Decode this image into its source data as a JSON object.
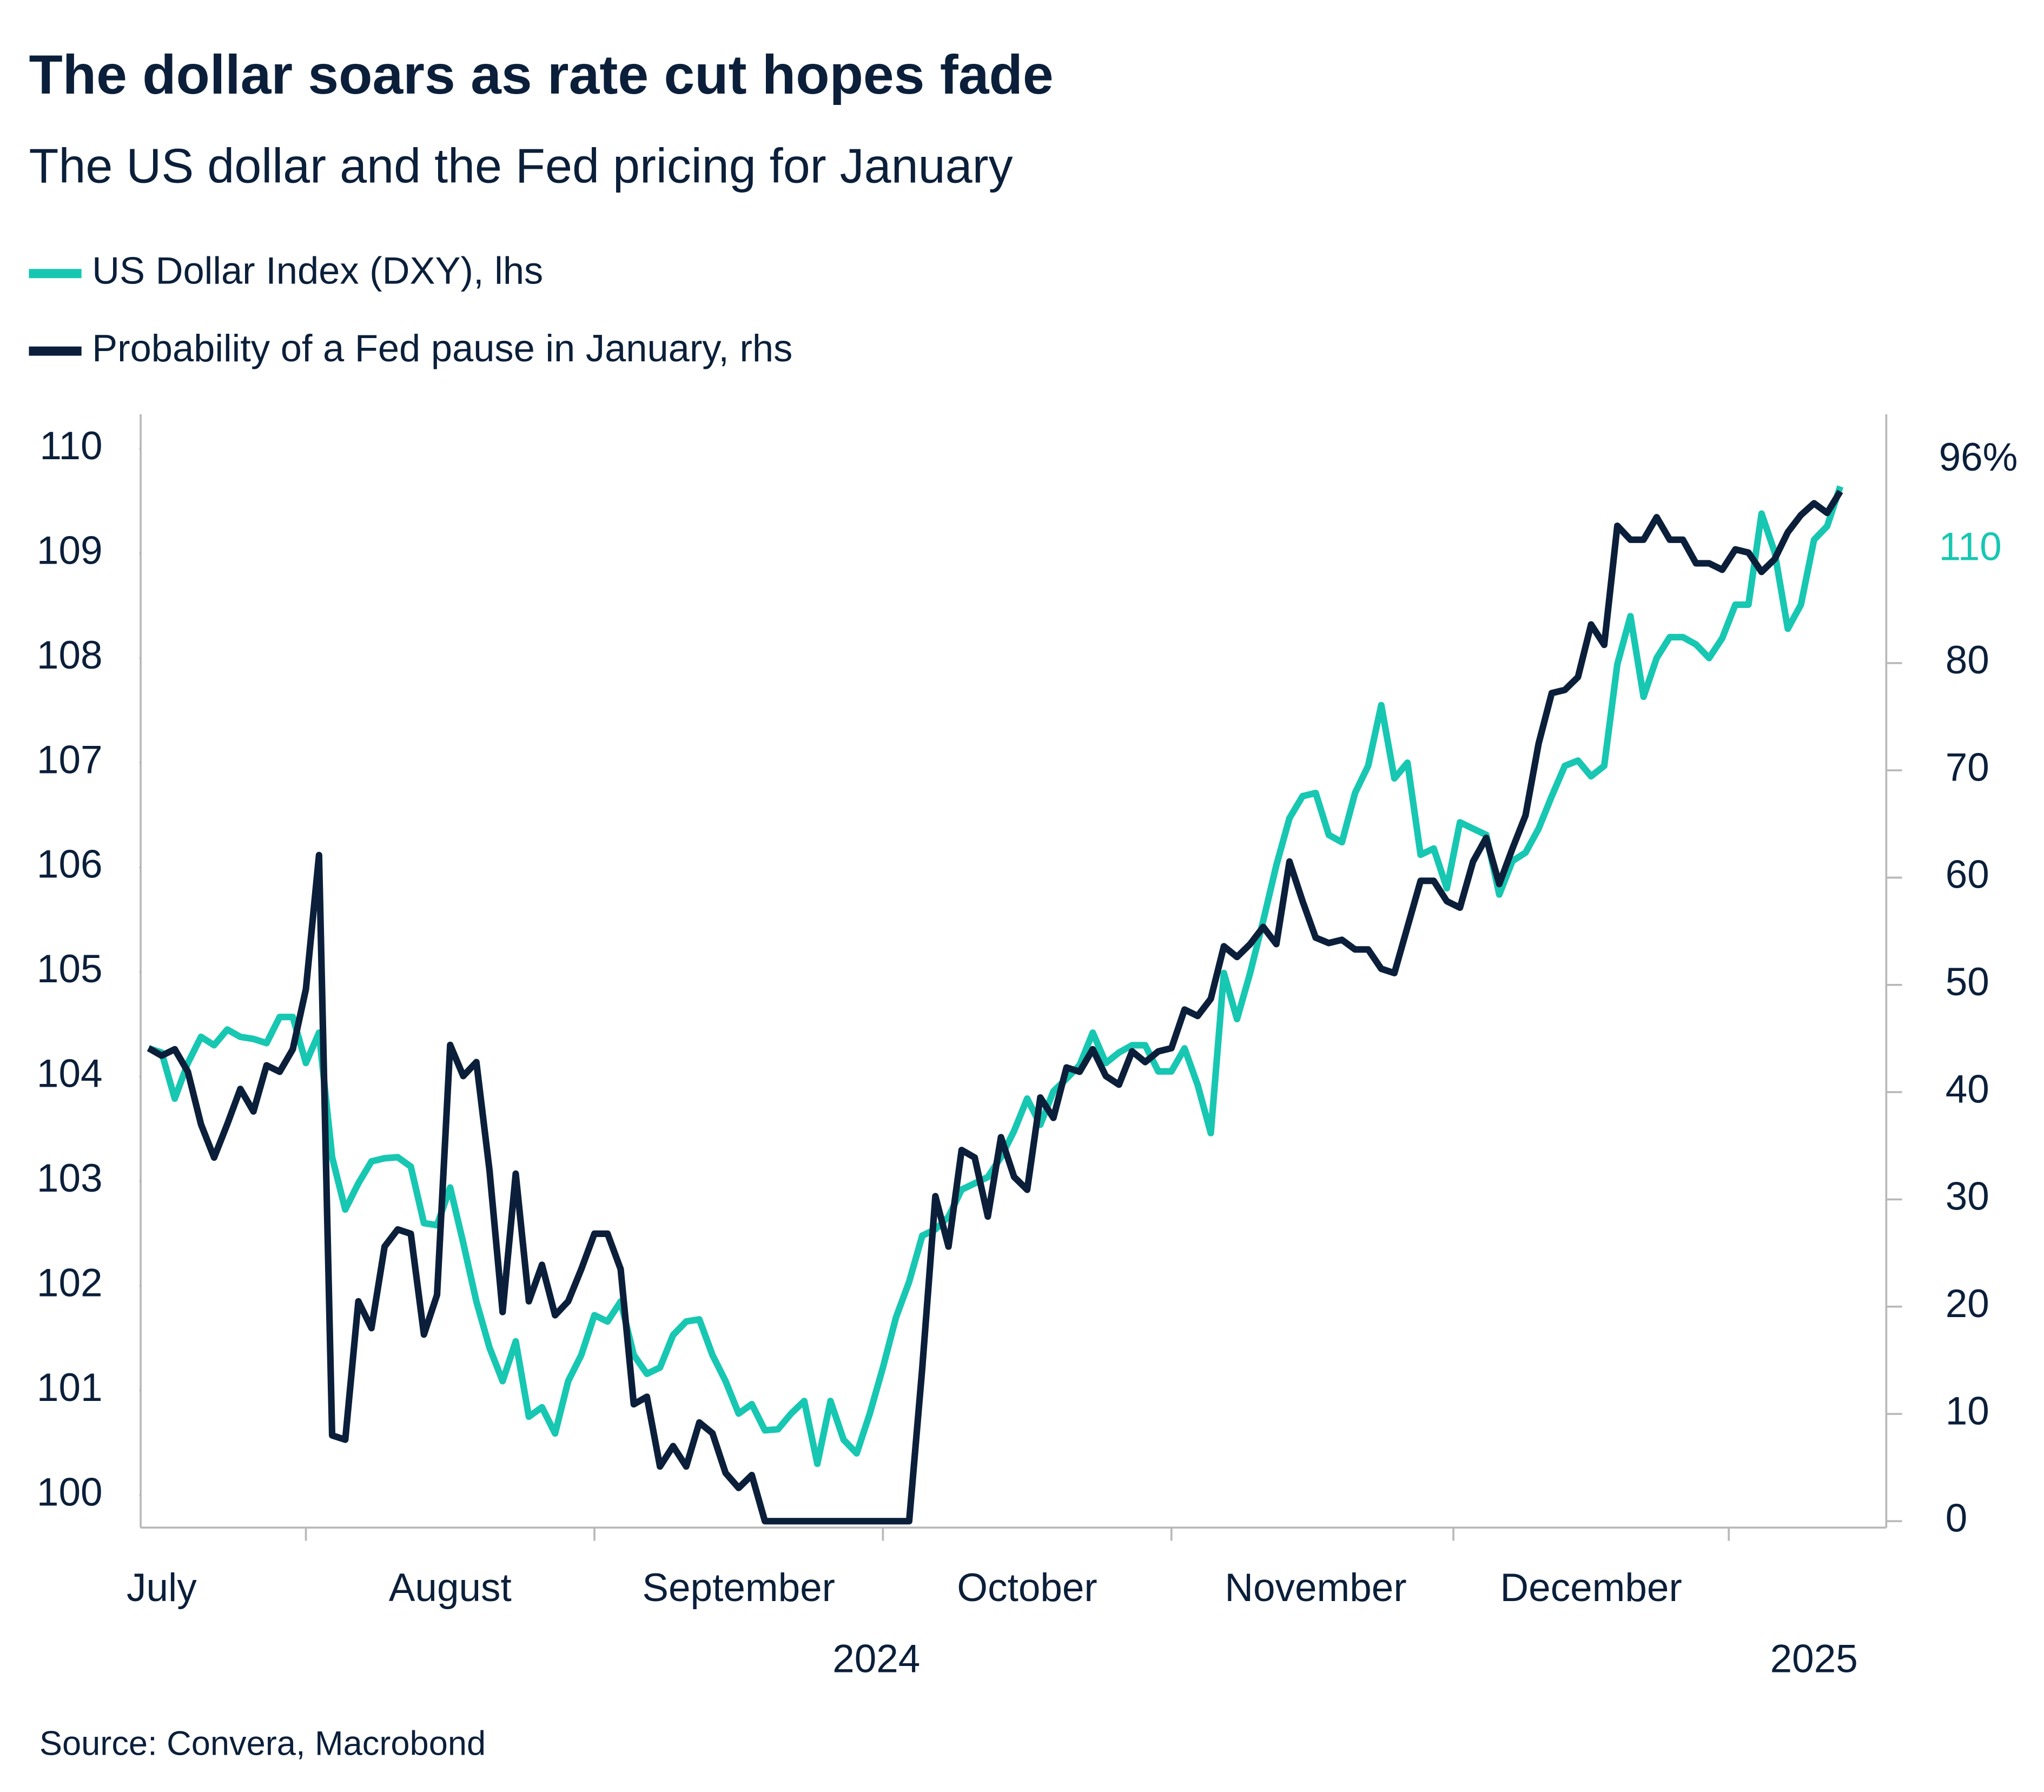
{
  "chart_data": {
    "type": "line",
    "title": "The dollar soars as rate cut hopes fade",
    "subtitle": "The US dollar and the Fed pricing for January",
    "source": "Source: Convera, Macrobond",
    "categories": [
      null,
      "July",
      null,
      null,
      null,
      null,
      null,
      null,
      null,
      null,
      null,
      null,
      null,
      null,
      null,
      null,
      null,
      null,
      null,
      null,
      null,
      null,
      null,
      "August",
      null,
      null,
      null,
      null,
      null,
      null,
      null,
      null,
      null,
      null,
      null,
      null,
      null,
      null,
      null,
      null,
      null,
      null,
      null,
      null,
      null,
      "September",
      null,
      null,
      null,
      null,
      null,
      null,
      null,
      null,
      null,
      null,
      null,
      null,
      null,
      null,
      null,
      null,
      null,
      null,
      null,
      null,
      null,
      "October",
      null,
      null,
      null,
      null,
      null,
      null,
      null,
      null,
      null,
      null,
      null,
      null,
      null,
      null,
      null,
      null,
      null,
      null,
      null,
      null,
      null,
      "November",
      null,
      null,
      null,
      null,
      null,
      null,
      null,
      null,
      null,
      null,
      null,
      null,
      null,
      null,
      null,
      null,
      null,
      null,
      null,
      null,
      "December",
      null,
      null,
      null,
      null,
      null,
      null,
      null,
      null,
      null,
      null,
      null,
      null,
      null,
      null,
      null,
      null,
      null,
      null,
      null
    ],
    "x_groups": [
      "2024",
      "2025"
    ],
    "ylim": [
      99.69,
      110.33
    ],
    "yticks": [
      100,
      101,
      102,
      103,
      104,
      105,
      106,
      107,
      108,
      109,
      110
    ],
    "y2lim": [
      -0.6,
      103.2
    ],
    "y2ticks": [
      0,
      10,
      20,
      30,
      40,
      50,
      60,
      70,
      80
    ],
    "series": [
      {
        "name": "US Dollar Index (DXY), lhs",
        "color": "#17c7b2",
        "axis": "y",
        "end_label": "110",
        "values": [
          104.27,
          104.23,
          103.79,
          104.13,
          104.38,
          104.3,
          104.45,
          104.38,
          104.36,
          104.32,
          104.57,
          104.57,
          104.13,
          104.42,
          103.23,
          102.73,
          102.98,
          103.19,
          103.22,
          103.23,
          103.14,
          102.6,
          102.58,
          102.94,
          102.41,
          101.85,
          101.41,
          101.09,
          101.47,
          100.75,
          100.84,
          100.59,
          101.09,
          101.34,
          101.72,
          101.66,
          101.85,
          101.34,
          101.16,
          101.22,
          101.53,
          101.66,
          101.68,
          101.34,
          101.09,
          100.78,
          100.87,
          100.62,
          100.63,
          100.78,
          100.9,
          100.3,
          100.9,
          100.53,
          100.4,
          100.78,
          101.22,
          101.7,
          102.04,
          102.48,
          102.54,
          102.66,
          102.92,
          102.98,
          103.04,
          103.23,
          103.48,
          103.79,
          103.54,
          103.86,
          103.98,
          104.11,
          104.42,
          104.13,
          104.23,
          104.3,
          104.3,
          104.05,
          104.05,
          104.27,
          103.92,
          103.46,
          104.99,
          104.55,
          104.99,
          105.49,
          106.02,
          106.47,
          106.68,
          106.71,
          106.31,
          106.24,
          106.71,
          106.97,
          107.55,
          106.85,
          107.0,
          106.12,
          106.18,
          105.8,
          106.43,
          106.37,
          106.31,
          105.74,
          106.06,
          106.14,
          106.37,
          106.68,
          106.97,
          107.02,
          106.87,
          106.97,
          107.94,
          108.4,
          107.63,
          108.0,
          108.2,
          108.2,
          108.13,
          108.0,
          108.19,
          108.51,
          108.51,
          109.38,
          109.01,
          108.28,
          108.51,
          109.13,
          109.26,
          109.64
        ]
      },
      {
        "name": "Probability of a Fed pause in January, rhs",
        "color": "#0b1f3a",
        "axis": "y2",
        "end_label": "96%",
        "values": [
          44.1,
          43.4,
          44.0,
          41.9,
          37.0,
          33.9,
          37.0,
          40.3,
          38.2,
          42.5,
          41.9,
          44.0,
          49.6,
          62.1,
          8.0,
          7.6,
          20.5,
          18.0,
          25.6,
          27.2,
          26.8,
          17.4,
          21.1,
          44.4,
          41.5,
          42.8,
          32.7,
          19.5,
          32.4,
          20.5,
          23.9,
          19.2,
          20.5,
          23.5,
          26.8,
          26.8,
          23.5,
          10.9,
          11.6,
          5.1,
          7.0,
          5.1,
          9.2,
          8.2,
          4.5,
          3.1,
          4.3,
          0,
          0,
          0,
          0,
          0,
          0,
          0,
          0,
          0,
          0,
          0,
          0,
          14.3,
          30.3,
          25.6,
          34.6,
          33.9,
          28.4,
          35.8,
          32.1,
          30.9,
          39.5,
          37.6,
          42.3,
          41.9,
          44.0,
          41.5,
          40.7,
          43.8,
          42.8,
          43.8,
          44.1,
          47.7,
          47.1,
          48.7,
          53.6,
          52.6,
          53.8,
          55.4,
          53.8,
          61.5,
          57.8,
          54.4,
          53.9,
          54.2,
          53.3,
          53.3,
          51.5,
          51.1,
          55.4,
          59.7,
          59.7,
          57.8,
          57.2,
          61.5,
          63.7,
          59.4,
          62.7,
          65.8,
          72.5,
          77.2,
          77.5,
          78.7,
          83.6,
          81.7,
          92.8,
          91.5,
          91.5,
          93.6,
          91.5,
          91.5,
          89.3,
          89.3,
          88.7,
          90.6,
          90.3,
          88.5,
          89.7,
          92.2,
          93.8,
          94.9,
          94.0,
          96.0
        ]
      }
    ]
  }
}
